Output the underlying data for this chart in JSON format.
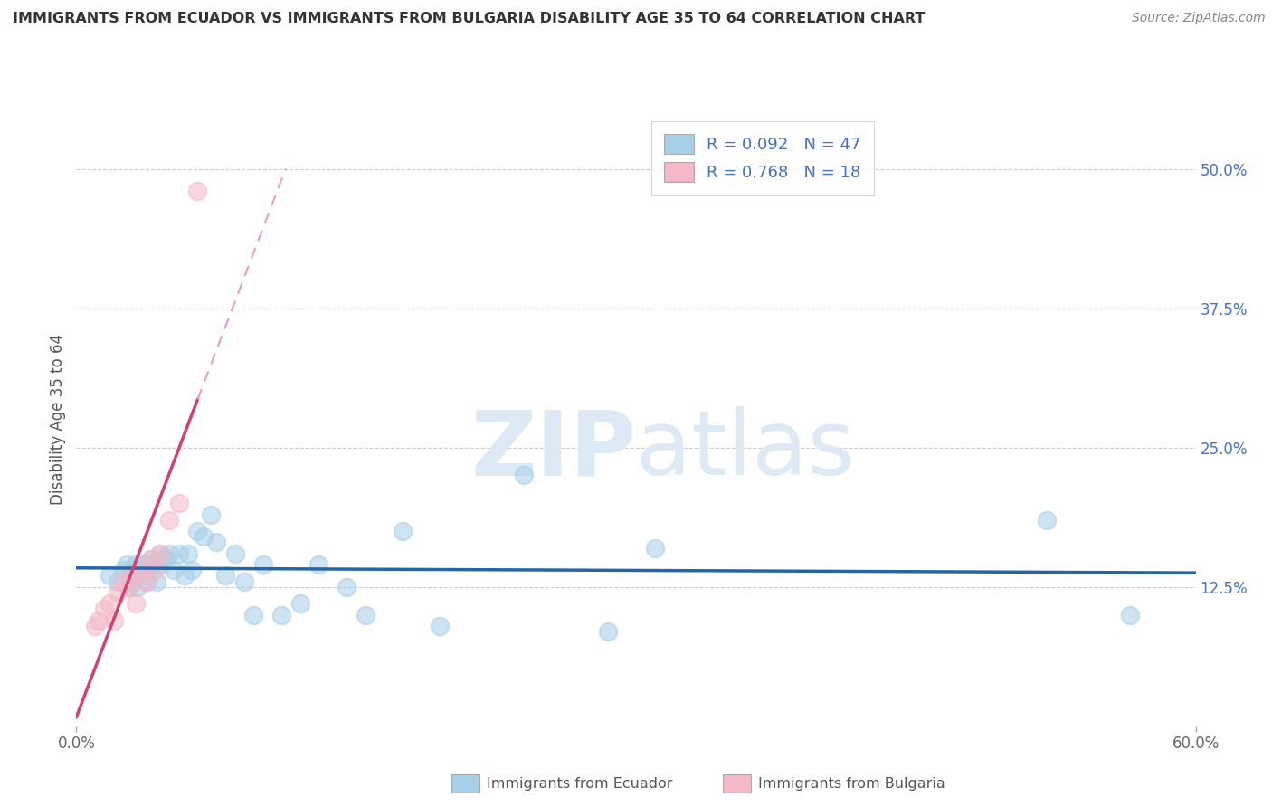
{
  "title": "IMMIGRANTS FROM ECUADOR VS IMMIGRANTS FROM BULGARIA DISABILITY AGE 35 TO 64 CORRELATION CHART",
  "source": "Source: ZipAtlas.com",
  "ylabel": "Disability Age 35 to 64",
  "xlim": [
    0.0,
    0.6
  ],
  "ylim": [
    0.0,
    0.55
  ],
  "xtick_positions": [
    0.0,
    0.6
  ],
  "xtick_labels": [
    "0.0%",
    "60.0%"
  ],
  "ytick_labels": [
    "12.5%",
    "25.0%",
    "37.5%",
    "50.0%"
  ],
  "ytick_positions": [
    0.125,
    0.25,
    0.375,
    0.5
  ],
  "legend1_R": "0.092",
  "legend1_N": "47",
  "legend2_R": "0.768",
  "legend2_N": "18",
  "ecuador_color": "#a8cfe8",
  "bulgaria_color": "#f4b8c8",
  "ecuador_line_color": "#2166ac",
  "bulgaria_line_color": "#d44070",
  "bulgaria_dash_color": "#e8a0b8",
  "watermark_color": "#ddeaf5",
  "background_color": "#ffffff",
  "grid_color": "#cccccc",
  "ecuador_scatter_x": [
    0.018,
    0.022,
    0.025,
    0.027,
    0.028,
    0.03,
    0.03,
    0.032,
    0.033,
    0.035,
    0.037,
    0.038,
    0.038,
    0.04,
    0.04,
    0.042,
    0.043,
    0.045,
    0.046,
    0.048,
    0.05,
    0.052,
    0.055,
    0.058,
    0.06,
    0.062,
    0.065,
    0.068,
    0.072,
    0.075,
    0.08,
    0.085,
    0.09,
    0.095,
    0.1,
    0.11,
    0.12,
    0.13,
    0.145,
    0.155,
    0.175,
    0.195,
    0.24,
    0.285,
    0.31,
    0.52,
    0.565
  ],
  "ecuador_scatter_y": [
    0.135,
    0.13,
    0.14,
    0.145,
    0.125,
    0.14,
    0.13,
    0.145,
    0.125,
    0.145,
    0.14,
    0.145,
    0.13,
    0.15,
    0.145,
    0.145,
    0.13,
    0.155,
    0.145,
    0.15,
    0.155,
    0.14,
    0.155,
    0.135,
    0.155,
    0.14,
    0.175,
    0.17,
    0.19,
    0.165,
    0.135,
    0.155,
    0.13,
    0.1,
    0.145,
    0.1,
    0.11,
    0.145,
    0.125,
    0.1,
    0.175,
    0.09,
    0.225,
    0.085,
    0.16,
    0.185,
    0.1
  ],
  "bulgaria_scatter_x": [
    0.01,
    0.012,
    0.015,
    0.018,
    0.02,
    0.022,
    0.025,
    0.028,
    0.03,
    0.032,
    0.035,
    0.037,
    0.04,
    0.042,
    0.045,
    0.05,
    0.055,
    0.065
  ],
  "bulgaria_scatter_y": [
    0.09,
    0.095,
    0.105,
    0.11,
    0.095,
    0.12,
    0.13,
    0.125,
    0.135,
    0.11,
    0.14,
    0.13,
    0.15,
    0.14,
    0.155,
    0.185,
    0.2,
    0.48
  ]
}
